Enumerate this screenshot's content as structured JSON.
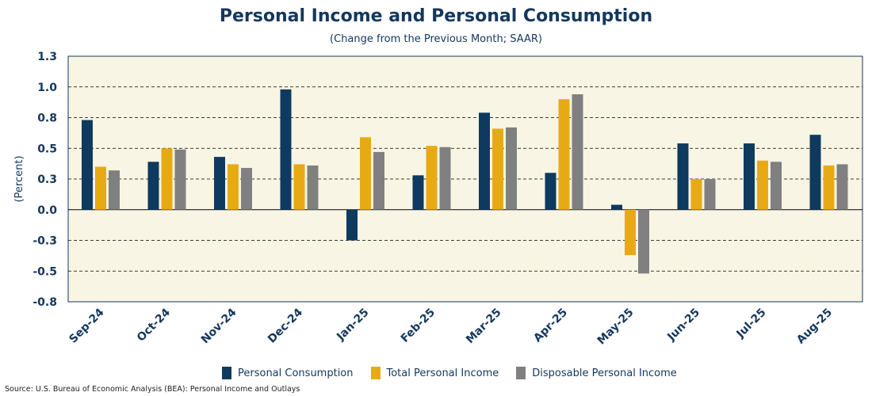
{
  "chart_data": {
    "type": "bar",
    "title": "Personal Income and Personal Consumption",
    "subtitle": "(Change from the Previous Month; SAAR)",
    "xlabel": "",
    "ylabel": "(Percent)",
    "ylim": [
      -0.75,
      1.25
    ],
    "yticks": [
      1.25,
      1.0,
      0.75,
      0.5,
      0.25,
      0.0,
      -0.25,
      -0.5,
      -0.75
    ],
    "ytick_labels": [
      "1.3",
      "1.0",
      "0.8",
      "0.5",
      "0.3",
      "0.0",
      "-0.3",
      "-0.5",
      "-0.8"
    ],
    "grid": true,
    "legend_position": "bottom",
    "categories": [
      "Sep-24",
      "Oct-24",
      "Nov-24",
      "Dec-24",
      "Jan-25",
      "Feb-25",
      "Mar-25",
      "Apr-25",
      "May-25",
      "Jun-25",
      "Jul-25",
      "Aug-25"
    ],
    "series": [
      {
        "name": "Personal Consumption",
        "color": "#0f3a5f",
        "values": [
          0.73,
          0.39,
          0.43,
          0.98,
          -0.25,
          0.28,
          0.79,
          0.3,
          0.04,
          0.54,
          0.54,
          0.61
        ]
      },
      {
        "name": "Total Personal Income",
        "color": "#e8aa14",
        "values": [
          0.35,
          0.5,
          0.37,
          0.37,
          0.59,
          0.52,
          0.66,
          0.9,
          -0.37,
          0.25,
          0.4,
          0.36
        ]
      },
      {
        "name": "Disposable Personal Income",
        "color": "#808080",
        "values": [
          0.32,
          0.49,
          0.34,
          0.36,
          0.47,
          0.51,
          0.67,
          0.94,
          -0.52,
          0.25,
          0.39,
          0.37
        ]
      }
    ]
  },
  "source": "Source: U.S. Bureau of Economic Analysis (BEA): Personal Income and Outlays"
}
